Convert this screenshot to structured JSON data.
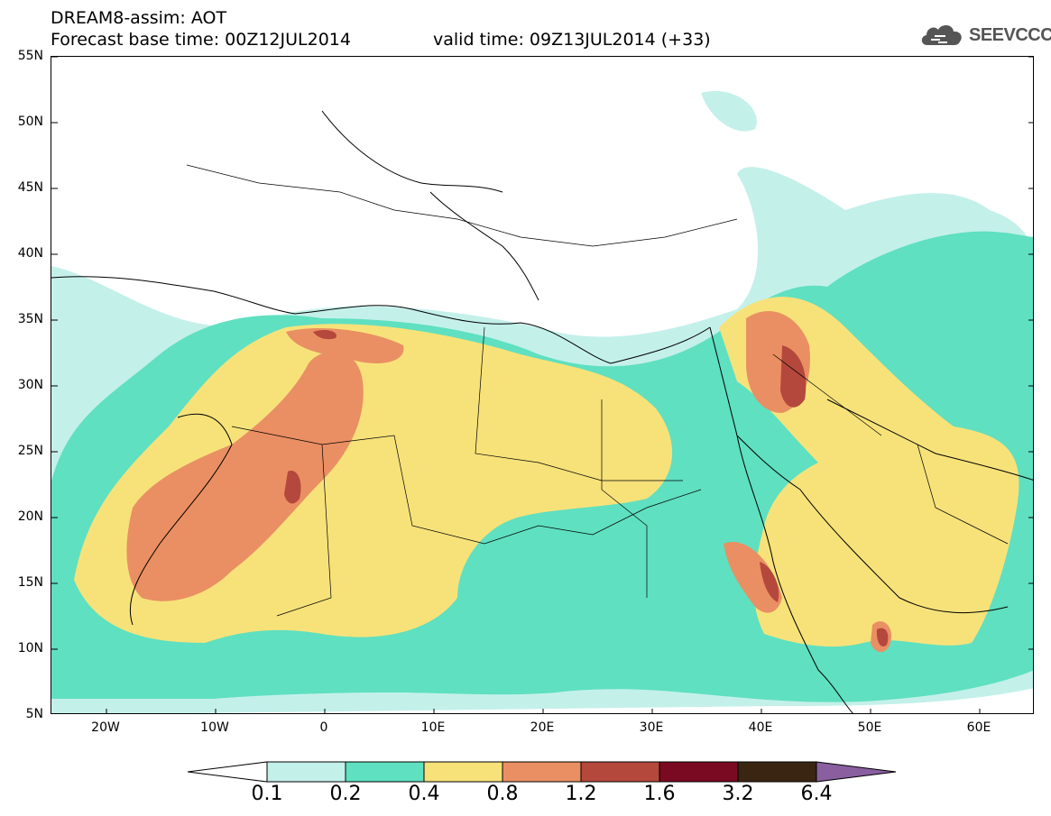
{
  "header": {
    "title": "DREAM8-assim: AOT",
    "base_time": "Forecast base time: 00Z12JUL2014",
    "valid_time": "valid time: 09Z13JUL2014 (+33)"
  },
  "logo": {
    "text": "SEEVCCC",
    "icon": "cloud-icon"
  },
  "map": {
    "lat_labels": [
      "55N",
      "50N",
      "45N",
      "40N",
      "35N",
      "30N",
      "25N",
      "20N",
      "15N",
      "10N",
      "5N"
    ],
    "lon_labels": [
      "20W",
      "10W",
      "0",
      "10E",
      "20E",
      "30E",
      "40E",
      "50E",
      "60E"
    ]
  },
  "colorbar": {
    "labels": [
      "0.1",
      "0.2",
      "0.4",
      "0.8",
      "1.2",
      "1.6",
      "3.2",
      "6.4"
    ],
    "colors": [
      "#ffffff",
      "#c4f0ea",
      "#5fe0c0",
      "#f7e27a",
      "#ea8f63",
      "#b5483c",
      "#7a0a22",
      "#3a2512",
      "#8a5fa0"
    ]
  }
}
